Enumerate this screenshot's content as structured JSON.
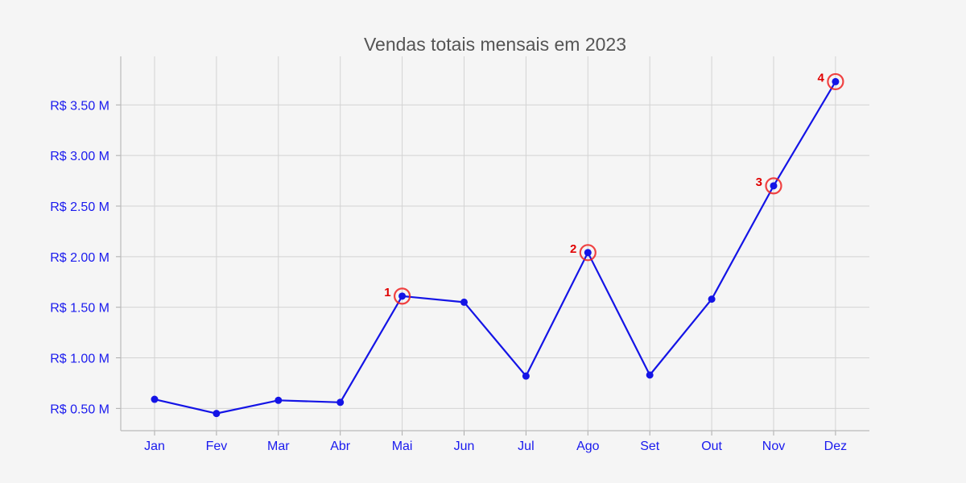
{
  "chart_data": {
    "type": "line",
    "title": "Vendas totais mensais em 2023",
    "xlabel": "",
    "ylabel": "",
    "categories": [
      "Jan",
      "Fev",
      "Mar",
      "Abr",
      "Mai",
      "Jun",
      "Jul",
      "Ago",
      "Set",
      "Out",
      "Nov",
      "Dez"
    ],
    "series": [
      {
        "values": [
          0.59,
          0.45,
          0.58,
          0.56,
          1.61,
          1.55,
          0.82,
          2.04,
          0.83,
          1.58,
          2.7,
          3.73
        ]
      }
    ],
    "yunit": "M",
    "ylim": [
      0.28,
      3.98
    ],
    "yticks": [
      0.5,
      1.0,
      1.5,
      2.0,
      2.5,
      3.0,
      3.5
    ],
    "ytick_labels": [
      "R$ 0.50 M",
      "R$ 1.00 M",
      "R$ 1.50 M",
      "R$ 2.00 M",
      "R$ 2.50 M",
      "R$ 3.00 M",
      "R$ 3.50 M"
    ],
    "grid": true,
    "highlights": [
      {
        "index": 4,
        "label": "1"
      },
      {
        "index": 7,
        "label": "2"
      },
      {
        "index": 10,
        "label": "3"
      },
      {
        "index": 11,
        "label": "4"
      }
    ],
    "colors": {
      "line": "#1414e6",
      "tick_text": "#1a1aee",
      "highlight": "#ee2222",
      "annotation_text": "#e00000",
      "grid": "#d3d3d3",
      "background": "#f5f5f5",
      "title": "#555555"
    }
  }
}
